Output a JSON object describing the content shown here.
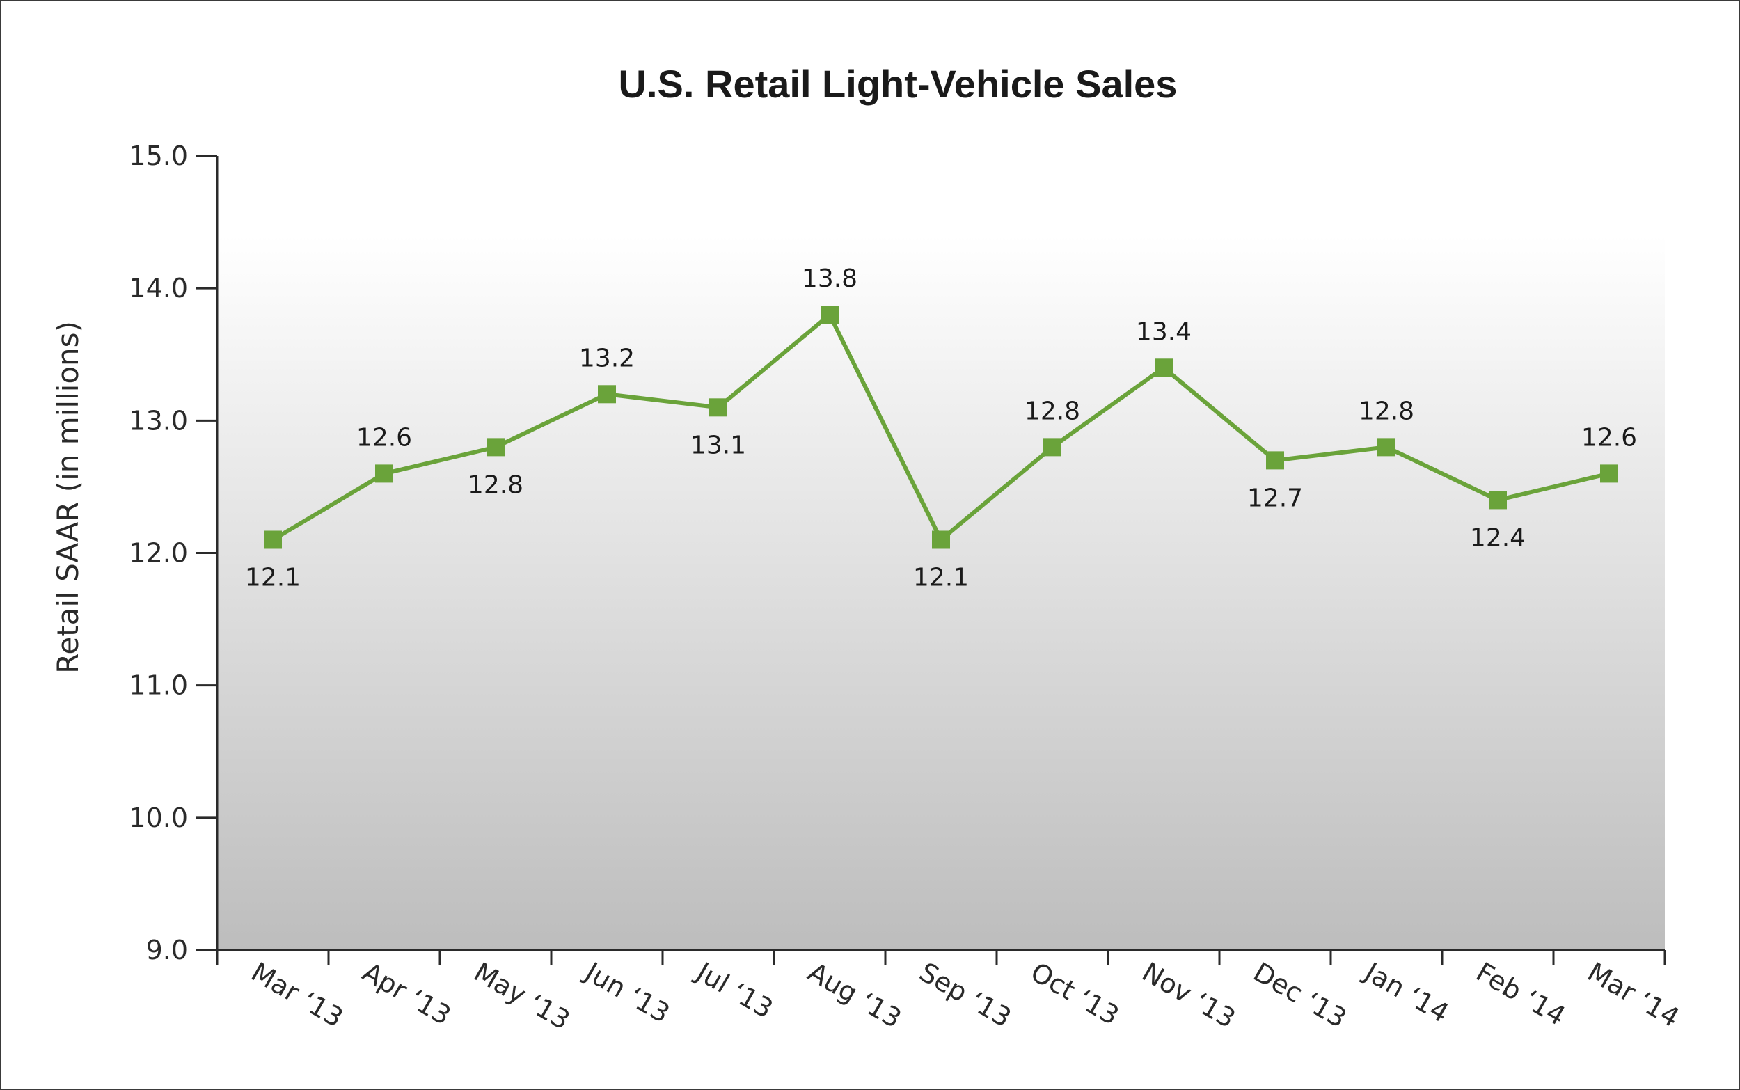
{
  "chart_data": {
    "type": "line",
    "title": "U.S. Retail Light-Vehicle Sales",
    "xlabel": "",
    "ylabel": "Retail SAAR (in millions)",
    "ylim": [
      9.0,
      15.0
    ],
    "yticks": [
      "9.0",
      "10.0",
      "11.0",
      "12.0",
      "13.0",
      "14.0",
      "15.0"
    ],
    "categories": [
      "Mar ‘13",
      "Apr ‘13",
      "May ‘13",
      "Jun ‘13",
      "Jul ‘13",
      "Aug ‘13",
      "Sep ‘13",
      "Oct ‘13",
      "Nov ‘13",
      "Dec ‘13",
      "Jan ‘14",
      "Feb ‘14",
      "Mar ‘14"
    ],
    "series": [
      {
        "values": [
          12.1,
          12.6,
          12.8,
          13.2,
          13.1,
          13.8,
          12.1,
          12.8,
          13.4,
          12.7,
          12.8,
          12.4,
          12.6
        ],
        "labels": [
          "12.1",
          "12.6",
          "12.8",
          "13.2",
          "13.1",
          "13.8",
          "12.1",
          "12.8",
          "13.4",
          "12.7",
          "12.8",
          "12.4",
          "12.6"
        ],
        "label_position": [
          "below",
          "above",
          "below",
          "above",
          "below",
          "above",
          "below",
          "above",
          "above",
          "below",
          "above",
          "below",
          "above"
        ]
      }
    ],
    "marker": "square",
    "grid": false,
    "legend": "none",
    "colors": {
      "line": "#6aa33a",
      "plot_background_top": "#ffffff",
      "plot_background_bottom": "#bdbdbd",
      "axis": "#2a2a2a"
    }
  }
}
